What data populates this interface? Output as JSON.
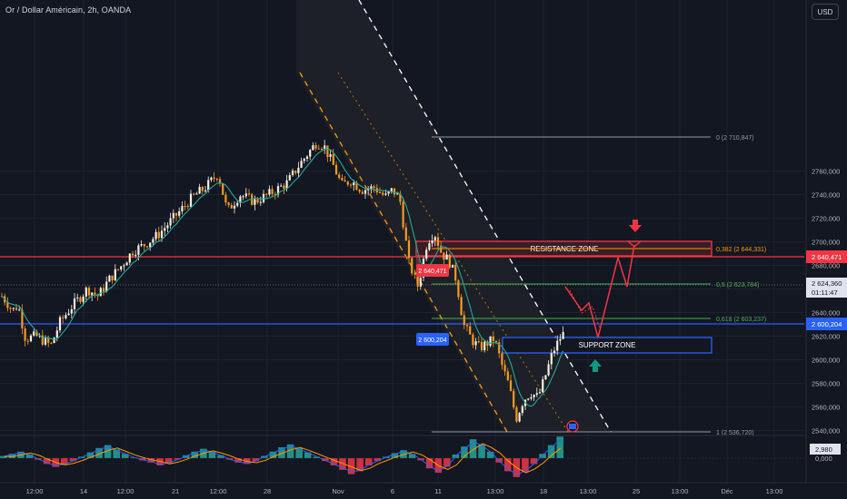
{
  "header": {
    "symbol_title": "Or / Dollar Américain, 2h, OANDA",
    "currency": "USD"
  },
  "colors": {
    "background": "#131722",
    "grid": "#1e222d",
    "candle_up": "#f7efe0",
    "candle_down": "#f59a23",
    "ma_line": "#26a69a",
    "resistance_line": "#f23645",
    "support_line": "#2962ff",
    "channel_fill": "#1f2128",
    "channel_lower_dash": "#ff9800",
    "channel_upper_dash": "#ffffff",
    "fib_gray": "#9598a1",
    "fib_orange": "#ff9800",
    "fib_green": "#4caf50",
    "projection_red": "#f23645",
    "arrow_down": "#f23645",
    "arrow_up": "#089981",
    "histogram_up": "#26a69a",
    "histogram_down": "#f23645"
  },
  "chart_data": {
    "type": "candlestick",
    "title": "Or / Dollar Américain, 2h, OANDA",
    "y_axis": {
      "ticks": [
        2540,
        2560,
        2580,
        2600,
        2620,
        2640,
        2660,
        2680,
        2700,
        2720,
        2740,
        2760
      ],
      "tick_labels": [
        "2540,000",
        "2560,000",
        "2580,000",
        "2600,000",
        "2620,000",
        "2640,000",
        "2660,000",
        "2680,000",
        "2700,000",
        "2720,000",
        "2740,000",
        "2760,000"
      ],
      "range": [
        2534,
        2786
      ]
    },
    "x_axis": {
      "tick_labels": [
        "12:00",
        "14",
        "12:00",
        "21",
        "12:00",
        "28",
        "Nov",
        "6",
        "11",
        "13:00",
        "18",
        "13:00",
        "25",
        "13:00",
        "Déc",
        "13:00"
      ]
    },
    "price_path": [
      [
        0,
        2656
      ],
      [
        14,
        2642
      ],
      [
        20,
        2646
      ],
      [
        28,
        2618
      ],
      [
        40,
        2620
      ],
      [
        56,
        2612
      ],
      [
        66,
        2632
      ],
      [
        80,
        2646
      ],
      [
        96,
        2660
      ],
      [
        108,
        2654
      ],
      [
        120,
        2668
      ],
      [
        134,
        2680
      ],
      [
        146,
        2692
      ],
      [
        160,
        2698
      ],
      [
        174,
        2706
      ],
      [
        186,
        2716
      ],
      [
        198,
        2726
      ],
      [
        212,
        2738
      ],
      [
        226,
        2746
      ],
      [
        240,
        2758
      ],
      [
        250,
        2726
      ],
      [
        264,
        2740
      ],
      [
        280,
        2734
      ],
      [
        300,
        2742
      ],
      [
        316,
        2750
      ],
      [
        330,
        2766
      ],
      [
        340,
        2776
      ],
      [
        348,
        2784
      ],
      [
        356,
        2782
      ],
      [
        366,
        2766
      ],
      [
        376,
        2748
      ],
      [
        386,
        2752
      ],
      [
        398,
        2744
      ],
      [
        412,
        2746
      ],
      [
        424,
        2738
      ],
      [
        432,
        2744
      ],
      [
        440,
        2736
      ],
      [
        450,
        2682
      ],
      [
        460,
        2662
      ],
      [
        470,
        2700
      ],
      [
        478,
        2708
      ],
      [
        486,
        2690
      ],
      [
        494,
        2684
      ],
      [
        502,
        2668
      ],
      [
        510,
        2630
      ],
      [
        520,
        2616
      ],
      [
        528,
        2610
      ],
      [
        536,
        2614
      ],
      [
        544,
        2618
      ],
      [
        552,
        2596
      ],
      [
        560,
        2578
      ],
      [
        568,
        2550
      ],
      [
        576,
        2566
      ],
      [
        584,
        2572
      ],
      [
        592,
        2568
      ],
      [
        600,
        2586
      ],
      [
        608,
        2606
      ],
      [
        616,
        2618
      ],
      [
        622,
        2624
      ]
    ],
    "current_price": {
      "value": "2 624,360",
      "countdown": "01:11:47"
    },
    "price_tags": [
      {
        "label": "2 640,471",
        "value": 2640.471,
        "color": "#f23645"
      },
      {
        "label": "2 600,204",
        "value": 2600.204,
        "color": "#2962ff"
      }
    ],
    "fibonacci": [
      {
        "label": "0 (2 710,847)",
        "value": 2710.847,
        "color": "#9598a1"
      },
      {
        "label": "0,382 (2 644,331)",
        "value": 2644.331,
        "color": "#ff9800"
      },
      {
        "label": "0,5 (2 623,784)",
        "value": 2623.784,
        "color": "#4caf50"
      },
      {
        "label": "0,618 (2 603,237)",
        "value": 2603.237,
        "color": "#4caf50"
      },
      {
        "label": "1 (2 536,720)",
        "value": 2536.72,
        "color": "#9598a1"
      }
    ],
    "zones": [
      {
        "label": "RESISTANCE ZONE",
        "low": 2642,
        "high": 2648,
        "color": "#f23645"
      },
      {
        "label": "SUPPORT ZONE",
        "low": 2588,
        "high": 2594,
        "color": "#2962ff"
      }
    ],
    "oscillator": {
      "current_value": "2,980",
      "zero_label": "0,000",
      "histogram": [
        0.3,
        0.6,
        0.9,
        0.5,
        -0.2,
        -0.8,
        -1.2,
        -0.9,
        -0.4,
        0.2,
        0.8,
        1.4,
        1.8,
        1.2,
        0.6,
        0.1,
        -0.3,
        -0.6,
        -1.0,
        -0.7,
        -0.2,
        0.4,
        0.9,
        1.3,
        0.9,
        0.4,
        -0.2,
        -0.6,
        -0.8,
        -0.4,
        0.3,
        0.9,
        1.5,
        1.9,
        1.4,
        0.8,
        0.2,
        -0.4,
        -1.0,
        -1.6,
        -2.2,
        -1.8,
        -1.0,
        -0.4,
        0.2,
        0.7,
        1.1,
        0.6,
        -0.3,
        -1.4,
        -2.0,
        -1.2,
        0.5,
        1.6,
        2.6,
        1.9,
        0.9,
        -0.6,
        -1.8,
        -2.6,
        -1.9,
        -0.8,
        0.6,
        1.8,
        2.98
      ]
    }
  }
}
